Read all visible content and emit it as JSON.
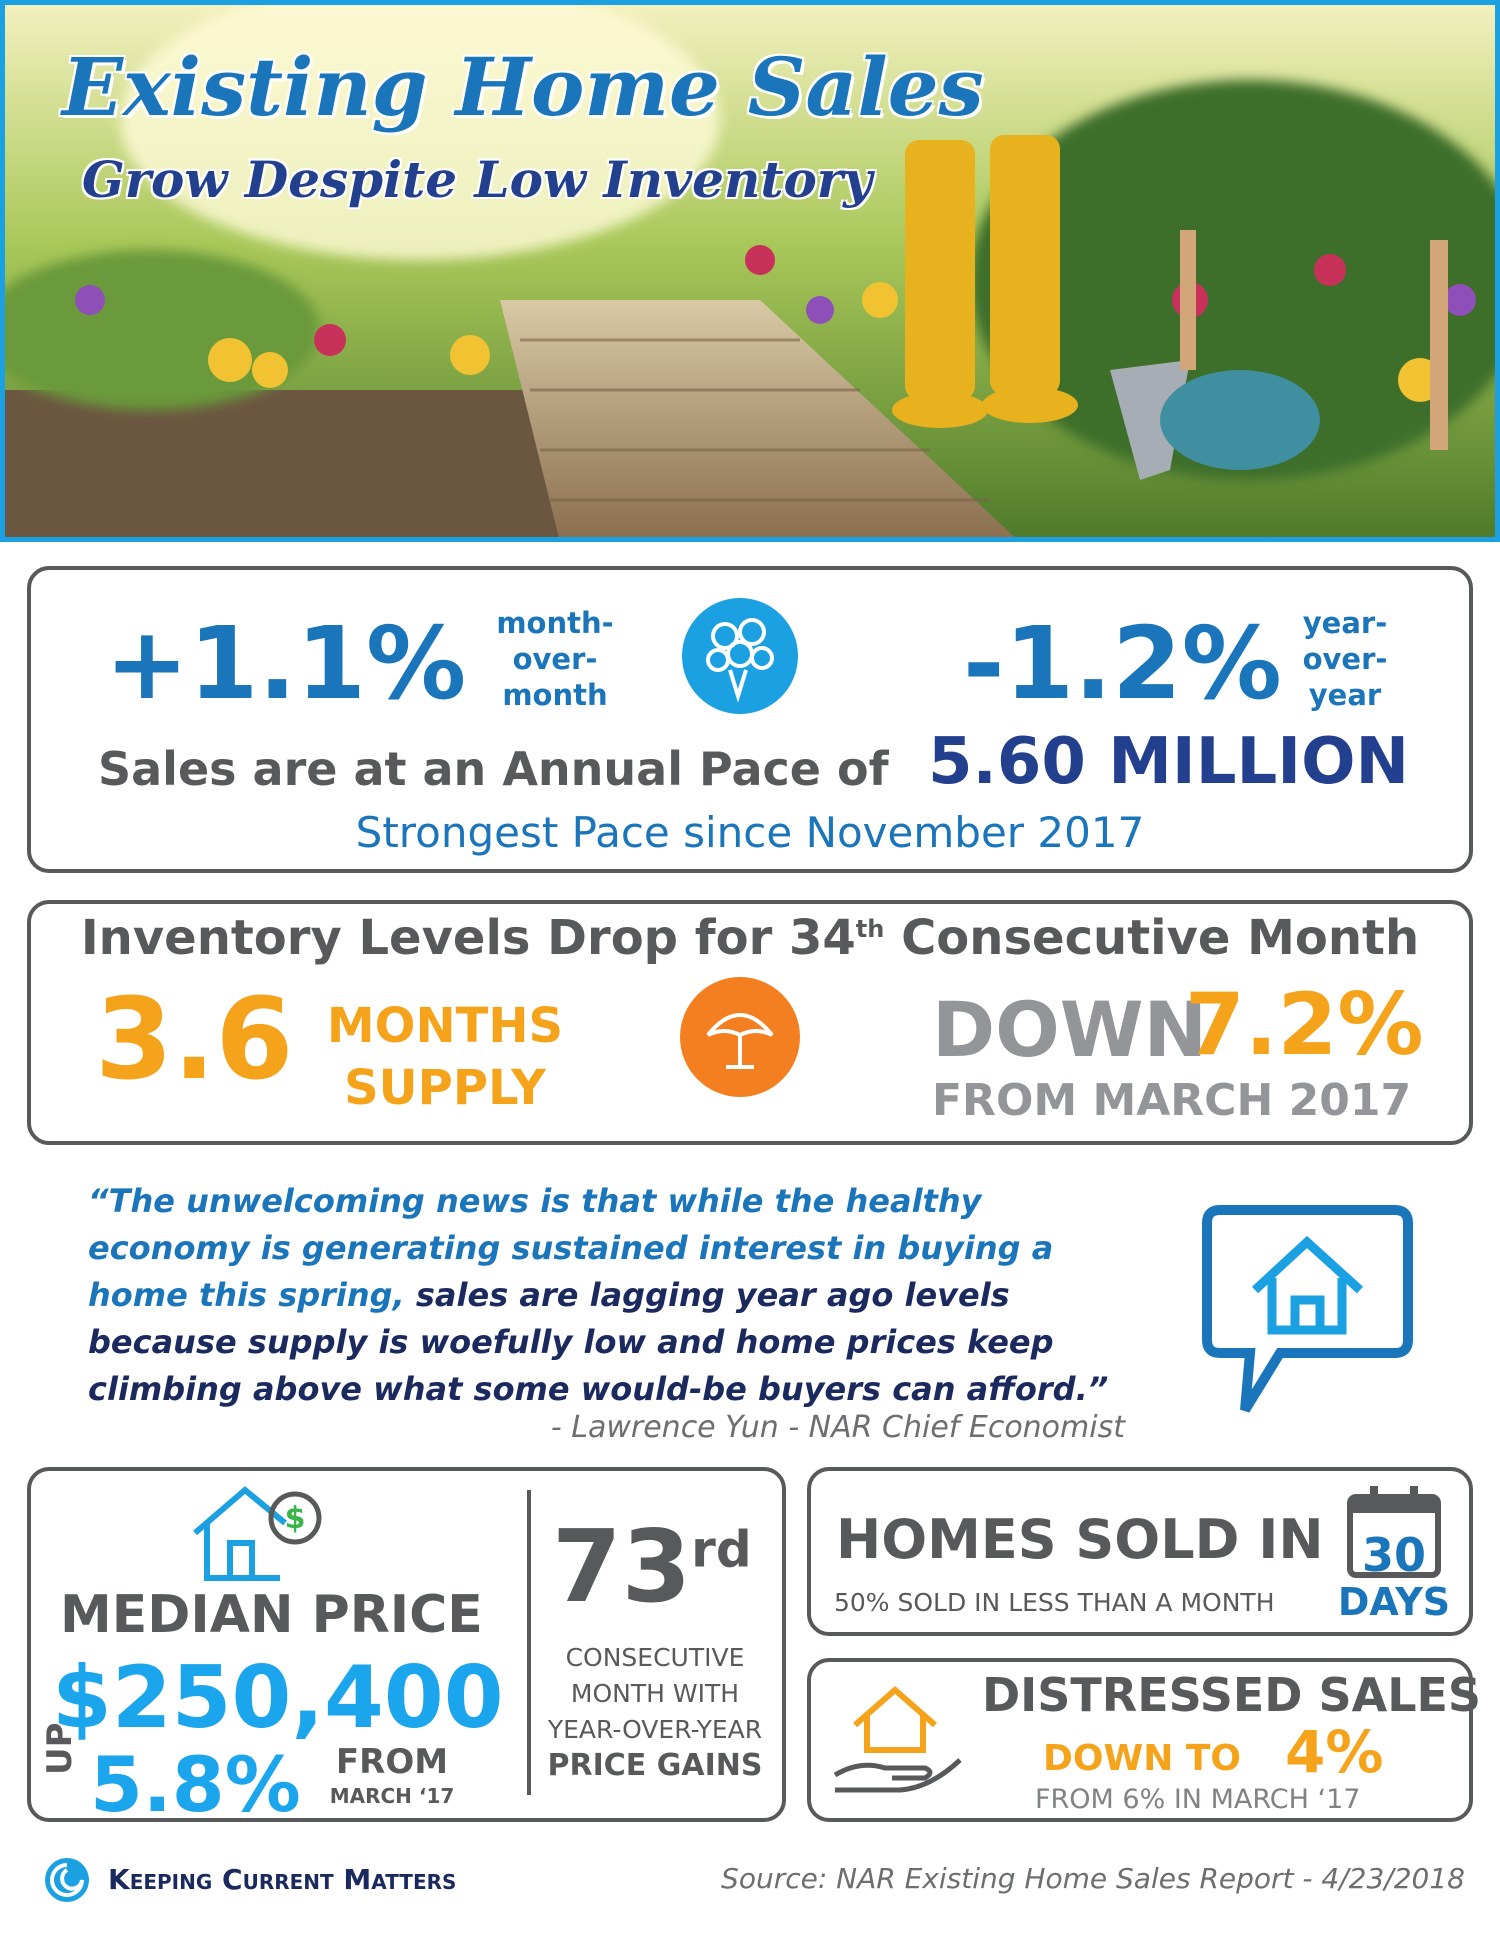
{
  "header": {
    "title": "Existing Home Sales",
    "subtitle": "Grow Despite Low Inventory"
  },
  "sales": {
    "mom_value": "+1.1%",
    "mom_label": [
      "month-",
      "over-",
      "month"
    ],
    "yoy_value": "-1.2%",
    "yoy_label": [
      "year-",
      "over-",
      "year"
    ],
    "pace_text": "Sales are at an Annual Pace of",
    "pace_value": "5.60 MILLION",
    "strongest": "Strongest Pace since November 2017"
  },
  "inventory": {
    "title_start": "Inventory Levels Drop for 34",
    "title_sup": "th",
    "title_end": "Consecutive Month",
    "supply_value": "3.6",
    "supply_label": [
      "MONTHS",
      "SUPPLY"
    ],
    "down_word": "DOWN",
    "down_value": "7.2%",
    "down_from": "FROM MARCH 2017"
  },
  "quote": {
    "part1": "“The unwelcoming news is that while the healthy economy is generating sustained interest in buying a home this spring,",
    "part2": "sales are lagging year ago levels because supply is woefully low and home prices keep climbing above what some would-be buyers can afford.”",
    "attribution": "- Lawrence Yun - NAR Chief Economist"
  },
  "median": {
    "label": "MEDIAN PRICE",
    "value": "$250,400",
    "up": "UP",
    "change": "5.8%",
    "from": [
      "FROM",
      "MARCH ‘17"
    ]
  },
  "gains": {
    "number": "73",
    "sup": "rd",
    "lines": [
      "CONSECUTIVE",
      "MONTH WITH",
      "YEAR-OVER-YEAR"
    ],
    "last": "PRICE GAINS"
  },
  "homes_sold": {
    "title": "HOMES SOLD IN",
    "subtitle": "50% SOLD IN LESS THAN A MONTH",
    "days_number": "30",
    "days_label": "DAYS"
  },
  "distressed": {
    "title": "DISTRESSED SALES",
    "down": "DOWN TO",
    "value": "4%",
    "from": "FROM 6% IN MARCH ‘17"
  },
  "footer": {
    "brand": "Keeping Current Matters",
    "source": "Source: NAR Existing Home Sales Report - 4/23/2018"
  }
}
